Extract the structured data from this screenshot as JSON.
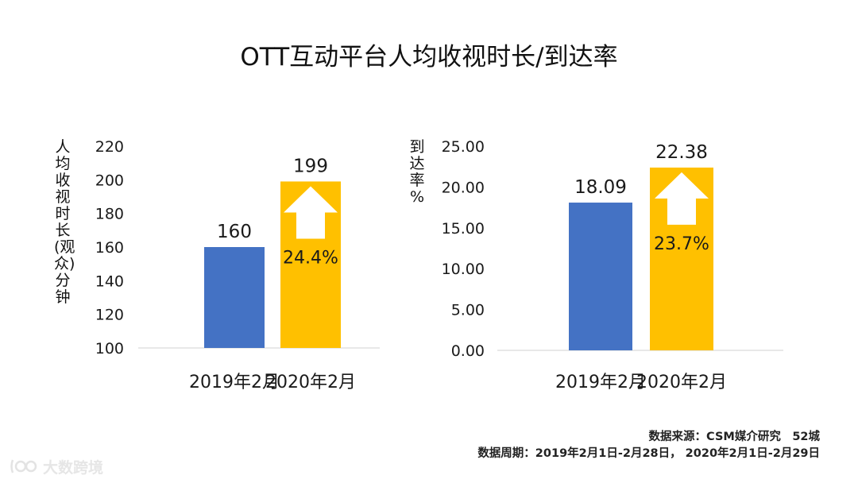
{
  "page": {
    "title": "OTT互动平台人均收视时长/到达率",
    "source_line1": "数据来源：CSM媒介研究　52城",
    "source_line2": "数据周期：2019年2月1日-2月28日，  2020年2月1日-2月29日",
    "watermark": "大数跨境"
  },
  "colors": {
    "blue": "#4472C4",
    "gold": "#FFC000",
    "axis": "#d9d9d9",
    "text": "#1a1a1a"
  },
  "chart_data": [
    {
      "type": "bar",
      "title": "人均收视时长",
      "ylabel": "人均收视时长(观众) 分钟",
      "categories": [
        "2019年2月",
        "2020年2月"
      ],
      "values": [
        160,
        199
      ],
      "value_labels": [
        "160",
        "199"
      ],
      "ylim": [
        100,
        220
      ],
      "yticks": [
        100,
        120,
        140,
        160,
        180,
        200,
        220
      ],
      "ytick_labels": [
        "100",
        "120",
        "140",
        "160",
        "180",
        "200",
        "220"
      ],
      "bar_colors": [
        "#4472C4",
        "#FFC000"
      ],
      "growth_label": "24.4%",
      "grid": false
    },
    {
      "type": "bar",
      "title": "到达率",
      "ylabel": "到达率 %",
      "categories": [
        "2019年2月",
        "2020年2月"
      ],
      "values": [
        18.09,
        22.38
      ],
      "value_labels": [
        "18.09",
        "22.38"
      ],
      "ylim": [
        0,
        25
      ],
      "yticks": [
        0,
        5,
        10,
        15,
        20,
        25
      ],
      "ytick_labels": [
        "0.00",
        "5.00",
        "10.00",
        "15.00",
        "20.00",
        "25.00"
      ],
      "bar_colors": [
        "#4472C4",
        "#FFC000"
      ],
      "growth_label": "23.7%",
      "grid": false
    }
  ]
}
